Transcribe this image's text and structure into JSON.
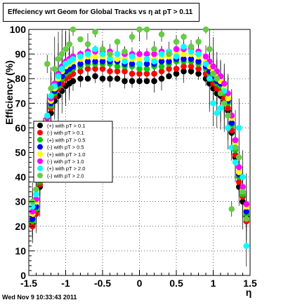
{
  "chart_data": {
    "type": "scatter",
    "title": "Effeciency wrt Geom for Global Tracks vs   η at pT > 0.11",
    "xlabel": "η",
    "ylabel": "Efficiency (%)",
    "xlim": [
      -1.5,
      1.5
    ],
    "ylim": [
      0,
      100
    ],
    "x_ticks": [
      "-1.5",
      "-1",
      "-0.5",
      "0",
      "0.5",
      "1",
      "1.5"
    ],
    "y_ticks": [
      "0",
      "10",
      "20",
      "30",
      "40",
      "50",
      "60",
      "70",
      "80",
      "90",
      "100"
    ],
    "grid": true,
    "legend_position": "center-left",
    "legend": [
      {
        "label": "(+) with pT > 0.1",
        "color": "#000000"
      },
      {
        "label": "(-) with pT > 0.1",
        "color": "#ff0000"
      },
      {
        "label": "(+) with pT > 0.5",
        "color": "#00cc00"
      },
      {
        "label": "(-) with pT > 0.5",
        "color": "#0000ff"
      },
      {
        "label": "(+) with pT > 1.0",
        "color": "#ffff00"
      },
      {
        "label": "(-) with pT > 1.0",
        "color": "#ff00ff"
      },
      {
        "label": "(+) with pT > 2.0",
        "color": "#00ffff"
      },
      {
        "label": "(-) with pT > 2.0",
        "color": "#66cc44"
      }
    ],
    "series": [
      {
        "color": "#000000",
        "x": [
          -1.45,
          -1.4,
          -1.35,
          -1.3,
          -1.25,
          -1.2,
          -1.15,
          -1.1,
          -1.05,
          -1.0,
          -0.95,
          -0.9,
          -0.8,
          -0.7,
          -0.6,
          -0.5,
          -0.4,
          -0.3,
          -0.2,
          -0.1,
          0.0,
          0.1,
          0.2,
          0.3,
          0.4,
          0.5,
          0.6,
          0.7,
          0.8,
          0.9,
          0.95,
          1.0,
          1.05,
          1.1,
          1.15,
          1.2,
          1.25,
          1.3,
          1.35,
          1.4,
          1.45
        ],
        "y": [
          21,
          26,
          36,
          48,
          58,
          66,
          71,
          73,
          75,
          77,
          78,
          79,
          80,
          80,
          81,
          80,
          80,
          80,
          79,
          79,
          79,
          79,
          79,
          80,
          81,
          82,
          83,
          83,
          82,
          80,
          78,
          76,
          74,
          73,
          71,
          67,
          58,
          48,
          36,
          30,
          24
        ]
      },
      {
        "color": "#ff0000",
        "x": [
          -1.45,
          -1.4,
          -1.35,
          -1.3,
          -1.25,
          -1.2,
          -1.15,
          -1.1,
          -1.05,
          -1.0,
          -0.95,
          -0.9,
          -0.8,
          -0.7,
          -0.6,
          -0.5,
          -0.4,
          -0.3,
          -0.2,
          -0.1,
          0.0,
          0.1,
          0.2,
          0.3,
          0.4,
          0.5,
          0.6,
          0.7,
          0.8,
          0.9,
          0.95,
          1.0,
          1.05,
          1.1,
          1.15,
          1.2,
          1.25,
          1.3,
          1.35,
          1.4,
          1.45
        ],
        "y": [
          20,
          25,
          37,
          50,
          60,
          68,
          73,
          76,
          78,
          80,
          81,
          82,
          83,
          84,
          84,
          84,
          83,
          83,
          83,
          82,
          82,
          82,
          82,
          83,
          84,
          84,
          85,
          85,
          84,
          82,
          80,
          78,
          76,
          75,
          72,
          68,
          59,
          49,
          38,
          32,
          22
        ]
      },
      {
        "color": "#00cc00",
        "x": [
          -1.45,
          -1.4,
          -1.35,
          -1.3,
          -1.25,
          -1.2,
          -1.15,
          -1.1,
          -1.05,
          -1.0,
          -0.95,
          -0.9,
          -0.8,
          -0.7,
          -0.6,
          -0.5,
          -0.4,
          -0.3,
          -0.2,
          -0.1,
          0.0,
          0.1,
          0.2,
          0.3,
          0.4,
          0.5,
          0.6,
          0.7,
          0.8,
          0.9,
          0.95,
          1.0,
          1.05,
          1.1,
          1.15,
          1.2,
          1.25,
          1.3,
          1.35,
          1.4,
          1.45
        ],
        "y": [
          22,
          27,
          38,
          52,
          61,
          69,
          74,
          77,
          80,
          82,
          83,
          84,
          85,
          86,
          86,
          86,
          86,
          85,
          85,
          85,
          84,
          84,
          85,
          85,
          86,
          87,
          87,
          87,
          86,
          84,
          82,
          80,
          78,
          77,
          74,
          70,
          61,
          51,
          40,
          33,
          25
        ]
      },
      {
        "color": "#0000ff",
        "x": [
          -1.45,
          -1.4,
          -1.35,
          -1.3,
          -1.25,
          -1.2,
          -1.15,
          -1.1,
          -1.05,
          -1.0,
          -0.95,
          -0.9,
          -0.8,
          -0.7,
          -0.6,
          -0.5,
          -0.4,
          -0.3,
          -0.2,
          -0.1,
          0.0,
          0.1,
          0.2,
          0.3,
          0.4,
          0.5,
          0.6,
          0.7,
          0.8,
          0.9,
          0.95,
          1.0,
          1.05,
          1.1,
          1.15,
          1.2,
          1.25,
          1.3,
          1.35,
          1.4,
          1.45
        ],
        "y": [
          23,
          28,
          39,
          53,
          62,
          70,
          75,
          78,
          81,
          83,
          84,
          85,
          86,
          87,
          87,
          87,
          87,
          87,
          86,
          86,
          86,
          86,
          86,
          87,
          87,
          88,
          88,
          88,
          87,
          85,
          83,
          81,
          79,
          78,
          75,
          71,
          62,
          52,
          41,
          34,
          26
        ]
      },
      {
        "color": "#ffff00",
        "x": [
          -1.45,
          -1.4,
          -1.35,
          -1.3,
          -1.25,
          -1.2,
          -1.15,
          -1.1,
          -1.05,
          -1.0,
          -0.95,
          -0.9,
          -0.8,
          -0.7,
          -0.6,
          -0.5,
          -0.4,
          -0.3,
          -0.2,
          -0.1,
          0.0,
          0.1,
          0.2,
          0.3,
          0.4,
          0.5,
          0.6,
          0.7,
          0.8,
          0.9,
          0.95,
          1.0,
          1.05,
          1.1,
          1.15,
          1.2,
          1.25,
          1.3,
          1.35,
          1.4,
          1.45
        ],
        "y": [
          25,
          30,
          40,
          54,
          63,
          71,
          76,
          80,
          83,
          85,
          86,
          87,
          88,
          89,
          89,
          89,
          89,
          88,
          88,
          88,
          88,
          88,
          88,
          89,
          89,
          90,
          90,
          90,
          89,
          87,
          85,
          83,
          81,
          79,
          76,
          72,
          64,
          54,
          42,
          35,
          28
        ]
      },
      {
        "color": "#ff00ff",
        "x": [
          -1.45,
          -1.4,
          -1.35,
          -1.3,
          -1.25,
          -1.2,
          -1.15,
          -1.1,
          -1.05,
          -1.0,
          -0.95,
          -0.9,
          -0.8,
          -0.7,
          -0.6,
          -0.5,
          -0.4,
          -0.3,
          -0.2,
          -0.1,
          0.0,
          0.1,
          0.2,
          0.3,
          0.4,
          0.5,
          0.6,
          0.7,
          0.8,
          0.9,
          0.95,
          1.0,
          1.05,
          1.1,
          1.15,
          1.2,
          1.25,
          1.3,
          1.35,
          1.4,
          1.45
        ],
        "y": [
          26,
          31,
          42,
          55,
          64,
          72,
          78,
          82,
          85,
          87,
          88,
          89,
          90,
          91,
          91,
          91,
          91,
          90,
          90,
          90,
          90,
          90,
          90,
          91,
          91,
          92,
          92,
          92,
          91,
          89,
          87,
          85,
          83,
          81,
          78,
          74,
          65,
          55,
          44,
          36,
          29
        ]
      },
      {
        "color": "#00ffff",
        "x": [
          -1.45,
          -1.4,
          -1.35,
          -1.3,
          -1.25,
          -1.2,
          -1.15,
          -1.1,
          -1.05,
          -1.0,
          -0.95,
          -0.9,
          -0.8,
          -0.7,
          -0.6,
          -0.5,
          -0.4,
          -0.3,
          -0.2,
          -0.1,
          0.0,
          0.1,
          0.2,
          0.3,
          0.4,
          0.5,
          0.6,
          0.7,
          0.8,
          0.9,
          0.95,
          1.0,
          1.05,
          1.1,
          1.15,
          1.2,
          1.25,
          1.3,
          1.35,
          1.4,
          1.45
        ],
        "y": [
          28,
          33,
          41,
          56,
          65,
          73,
          77,
          81,
          84,
          86,
          87,
          88,
          89,
          90,
          92,
          90,
          88,
          90,
          87,
          89,
          86,
          88,
          87,
          90,
          91,
          89,
          93,
          91,
          90,
          86,
          80,
          70,
          66,
          68,
          75,
          60,
          52,
          46,
          60,
          40,
          12
        ]
      },
      {
        "color": "#66cc44",
        "x": [
          -1.45,
          -1.4,
          -1.35,
          -1.3,
          -1.25,
          -1.2,
          -1.15,
          -1.1,
          -1.05,
          -1.0,
          -0.95,
          -0.9,
          -0.8,
          -0.7,
          -0.6,
          -0.5,
          -0.4,
          -0.3,
          -0.2,
          -0.1,
          0.0,
          0.1,
          0.2,
          0.3,
          0.4,
          0.5,
          0.6,
          0.7,
          0.8,
          0.9,
          0.95,
          1.0,
          1.05,
          1.1,
          1.15,
          1.2,
          1.25,
          1.3,
          1.35,
          1.4,
          1.45
        ],
        "y": [
          30,
          35,
          44,
          58,
          86,
          76,
          84,
          88,
          90,
          92,
          94,
          100,
          96,
          94,
          99,
          92,
          90,
          95,
          91,
          97,
          100,
          100,
          92,
          98,
          90,
          95,
          97,
          93,
          95,
          100,
          92,
          82,
          80,
          74,
          70,
          65,
          27,
          52,
          48,
          34,
          23
        ]
      }
    ]
  },
  "timestamp": "Wed Nov  9 10:33:43 2011"
}
